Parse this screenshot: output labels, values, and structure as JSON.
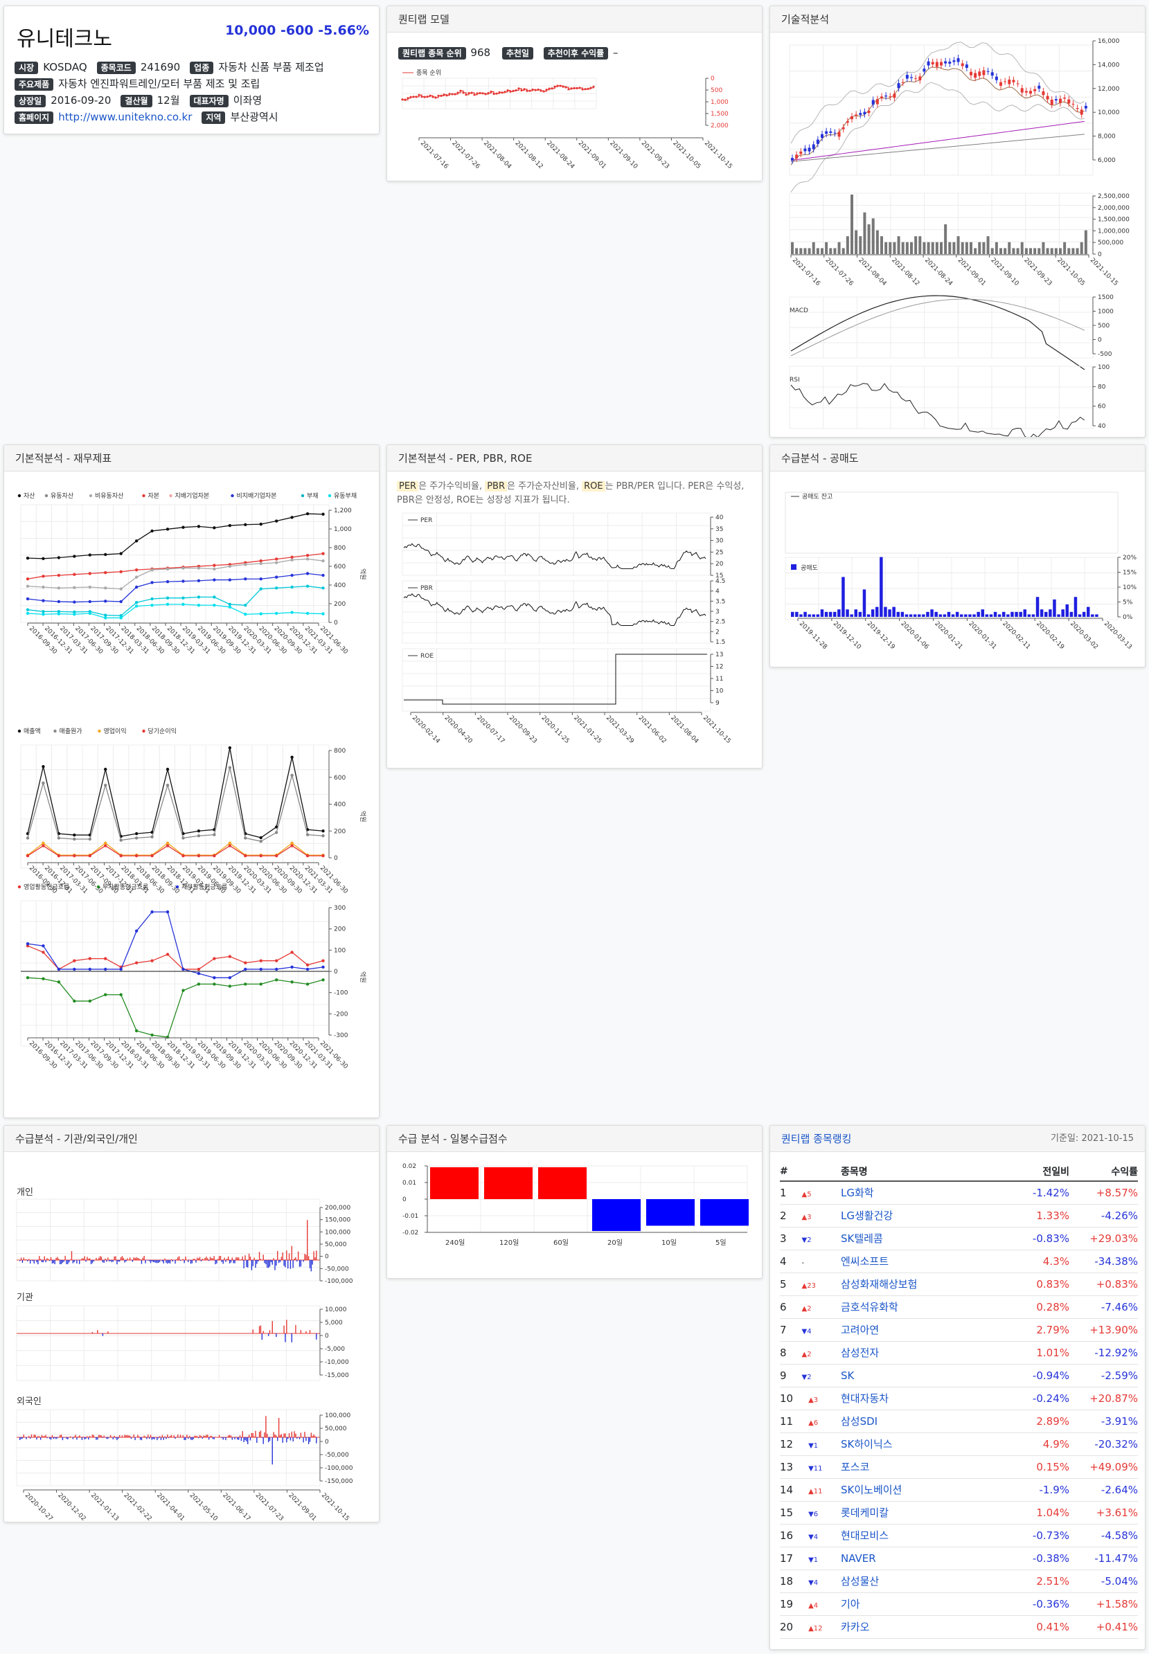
{
  "company": {
    "name": "유니테크노",
    "price": "10,000",
    "change": "-600",
    "change_pct": "-5.66%",
    "labels": {
      "market": "시장",
      "code": "종목코드",
      "industry": "업종",
      "products": "주요제품",
      "listed": "상장일",
      "fiscal": "결산월",
      "ceo": "대표자명",
      "homepage": "홈페이지",
      "region": "지역"
    },
    "market": "KOSDAQ",
    "code": "241690",
    "industry": "자동차 신품 부품 제조업",
    "products": "자동차 엔진파워트레인/모터 부품 제조 및 조립",
    "listed": "2016-09-20",
    "fiscal": "12월",
    "ceo": "이좌영",
    "homepage": "http://www.unitekno.co.kr",
    "region": "부산광역시"
  },
  "quant": {
    "title": "퀀티랩 모델",
    "rank_label": "퀀티랩 종목 순위",
    "rank": "968",
    "rec_label": "추천일",
    "rec_return_label": "추천이후 수익률",
    "rec_return": "–",
    "legend": "종목 순위",
    "yticks": [
      "0",
      "500",
      "1,000",
      "1,500",
      "2,000"
    ],
    "xticks": [
      "2021-07-16",
      "2021-07-26",
      "2021-08-04",
      "2021-08-12",
      "2021-08-24",
      "2021-09-01",
      "2021-09-10",
      "2021-09-23",
      "2021-10-05",
      "2021-10-15"
    ]
  },
  "tech": {
    "title": "기술적분석",
    "price_ticks": [
      "16,000",
      "14,000",
      "12,000",
      "10,000",
      "8,000",
      "6,000"
    ],
    "vol_ticks": [
      "2,500,000",
      "2,000,000",
      "1,500,000",
      "1,000,000",
      "500,000",
      "0"
    ],
    "macd_label": "MACD",
    "macd_ticks": [
      "1500",
      "1000",
      "500",
      "0",
      "-500"
    ],
    "rsi_label": "RSI",
    "rsi_ticks": [
      "100",
      "80",
      "60",
      "40"
    ],
    "xticks": [
      "2021-07-16",
      "2021-07-26",
      "2021-08-04",
      "2021-08-12",
      "2021-08-24",
      "2021-09-01",
      "2021-09-10",
      "2021-09-23",
      "2021-10-05",
      "2021-10-15"
    ]
  },
  "fin": {
    "title": "기본적분석 - 재무제표",
    "legend1": [
      "자산",
      "유동자산",
      "비유동자산",
      "자본",
      "지배기업자본",
      "비지배기업자본",
      "부채",
      "유동부채"
    ],
    "legend2": [
      "매출액",
      "매출원가",
      "영업이익",
      "당기순이익"
    ],
    "legend3": [
      "영업활동현금흐름",
      "투자활동현금흐름",
      "재무활동현금흐름"
    ],
    "unit": "억원",
    "ticks1": [
      "1,200",
      "1,000",
      "800",
      "600",
      "400",
      "200",
      "0"
    ],
    "ticks2": [
      "800",
      "600",
      "400",
      "200",
      "0"
    ],
    "ticks3": [
      "300",
      "200",
      "100",
      "0",
      "-100",
      "-200",
      "-300"
    ],
    "xticks": [
      "2016-09-30",
      "2016-12-31",
      "2017-03-31",
      "2017-06-30",
      "2017-09-30",
      "2017-12-31",
      "2018-03-31",
      "2018-06-30",
      "2018-09-30",
      "2018-12-31",
      "2019-03-31",
      "2019-06-30",
      "2019-09-30",
      "2019-12-31",
      "2020-03-31",
      "2020-06-30",
      "2020-09-30",
      "2020-12-31",
      "2021-03-31",
      "2021-06-30"
    ]
  },
  "per": {
    "title": "기본적분석 - PER, PBR, ROE",
    "desc": {
      "per": "PER",
      "t1": "은 주가수익비율, ",
      "pbr": "PBR",
      "t2": "은 주가순자산비율, ",
      "roe": "ROE",
      "t3": "는 PBR/PER 입니다. PER은 수익성, PBR은 안정성, ROE는 성장성 지표가 됩니다."
    },
    "per_label": "PER",
    "pbr_label": "PBR",
    "roe_label": "ROE",
    "per_ticks": [
      "40",
      "35",
      "30",
      "25",
      "20",
      "15"
    ],
    "pbr_ticks": [
      "4.5",
      "4",
      "3.5",
      "3",
      "2.5",
      "2",
      "1.5"
    ],
    "roe_ticks": [
      "13",
      "12",
      "11",
      "10",
      "9"
    ],
    "xticks": [
      "2020-02-14",
      "2020-04-20",
      "2020-07-17",
      "2020-09-23",
      "2020-11-25",
      "2021-01-25",
      "2021-03-29",
      "2021-06-02",
      "2021-08-04",
      "2021-10-15"
    ]
  },
  "short": {
    "title": "수급분석 - 공매도",
    "balance_label": "공매도 잔고",
    "vol_label": "공매도",
    "ticks": [
      "20%",
      "15%",
      "10%",
      "5%",
      "0%"
    ],
    "xticks": [
      "2019-11-28",
      "2019-12-10",
      "2019-12-19",
      "2020-01-06",
      "2020-01-21",
      "2020-01-31",
      "2020-02-11",
      "2020-02-19",
      "2020-03-02",
      "2020-03-13"
    ]
  },
  "flow": {
    "title": "수급분석 - 기관/외국인/개인",
    "individual": "개인",
    "institution": "기관",
    "foreign": "외국인",
    "ind_ticks": [
      "200,000",
      "150,000",
      "100,000",
      "50,000",
      "0",
      "-50,000",
      "-100,000"
    ],
    "inst_ticks": [
      "10,000",
      "5,000",
      "0",
      "-5,000",
      "-10,000",
      "-15,000"
    ],
    "for_ticks": [
      "100,000",
      "50,000",
      "0",
      "-50,000",
      "-100,000",
      "-150,000"
    ],
    "xticks": [
      "2020-10-27",
      "2020-12-02",
      "2021-01-13",
      "2021-02-22",
      "2021-04-01",
      "2021-05-10",
      "2021-06-17",
      "2021-07-23",
      "2021-09-01",
      "2021-10-15"
    ]
  },
  "score": {
    "title": "수급 분석 - 일봉수급점수",
    "ticks": [
      "0.02",
      "0.01",
      "0",
      "-0.01",
      "-0.02"
    ],
    "chart_data": {
      "type": "bar",
      "categories": [
        "240일",
        "120일",
        "60일",
        "20일",
        "10일",
        "5일"
      ],
      "values": [
        0.024,
        0.024,
        0.024,
        -0.024,
        -0.02,
        -0.02
      ],
      "ylim": [
        -0.025,
        0.025
      ]
    }
  },
  "rank": {
    "title": "퀀티랩 종목랭킹",
    "date": "기준일: 2021-10-15",
    "headers": [
      "#",
      "종목명",
      "전일비",
      "수익률"
    ],
    "rows": [
      {
        "n": "1",
        "mv": "▲5",
        "d": "up",
        "name": "LG화학",
        "c": "-1.42%",
        "cd": "dn",
        "r": "+8.57%",
        "rd": "up"
      },
      {
        "n": "2",
        "mv": "▲3",
        "d": "up",
        "name": "LG생활건강",
        "c": "1.33%",
        "cd": "up",
        "r": "-4.26%",
        "rd": "dn"
      },
      {
        "n": "3",
        "mv": "▼2",
        "d": "dn",
        "name": "SK텔레콤",
        "c": "-0.83%",
        "cd": "dn",
        "r": "+29.03%",
        "rd": "up"
      },
      {
        "n": "4",
        "mv": "-",
        "d": "",
        "name": "엔씨소프트",
        "c": "4.3%",
        "cd": "up",
        "r": "-34.38%",
        "rd": "dn"
      },
      {
        "n": "5",
        "mv": "▲23",
        "d": "up",
        "name": "삼성화재해상보험",
        "c": "0.83%",
        "cd": "up",
        "r": "+0.83%",
        "rd": "up"
      },
      {
        "n": "6",
        "mv": "▲2",
        "d": "up",
        "name": "금호석유화학",
        "c": "0.28%",
        "cd": "up",
        "r": "-7.46%",
        "rd": "dn"
      },
      {
        "n": "7",
        "mv": "▼4",
        "d": "dn",
        "name": "고려아연",
        "c": "2.79%",
        "cd": "up",
        "r": "+13.90%",
        "rd": "up"
      },
      {
        "n": "8",
        "mv": "▲2",
        "d": "up",
        "name": "삼성전자",
        "c": "1.01%",
        "cd": "up",
        "r": "-12.92%",
        "rd": "dn"
      },
      {
        "n": "9",
        "mv": "▼2",
        "d": "dn",
        "name": "SK",
        "c": "-0.94%",
        "cd": "dn",
        "r": "-2.59%",
        "rd": "dn"
      },
      {
        "n": "10",
        "mv": "▲3",
        "d": "up",
        "name": "현대자동차",
        "c": "-0.24%",
        "cd": "dn",
        "r": "+20.87%",
        "rd": "up"
      },
      {
        "n": "11",
        "mv": "▲6",
        "d": "up",
        "name": "삼성SDI",
        "c": "2.89%",
        "cd": "up",
        "r": "-3.91%",
        "rd": "dn"
      },
      {
        "n": "12",
        "mv": "▼1",
        "d": "dn",
        "name": "SK하이닉스",
        "c": "4.9%",
        "cd": "up",
        "r": "-20.32%",
        "rd": "dn"
      },
      {
        "n": "13",
        "mv": "▼11",
        "d": "dn",
        "name": "포스코",
        "c": "0.15%",
        "cd": "up",
        "r": "+49.09%",
        "rd": "up"
      },
      {
        "n": "14",
        "mv": "▲11",
        "d": "up",
        "name": "SK이노베이션",
        "c": "-1.9%",
        "cd": "dn",
        "r": "-2.64%",
        "rd": "dn"
      },
      {
        "n": "15",
        "mv": "▼6",
        "d": "dn",
        "name": "롯데케미칼",
        "c": "1.04%",
        "cd": "up",
        "r": "+3.61%",
        "rd": "up"
      },
      {
        "n": "16",
        "mv": "▼4",
        "d": "dn",
        "name": "현대모비스",
        "c": "-0.73%",
        "cd": "dn",
        "r": "-4.58%",
        "rd": "dn"
      },
      {
        "n": "17",
        "mv": "▼1",
        "d": "dn",
        "name": "NAVER",
        "c": "-0.38%",
        "cd": "dn",
        "r": "-11.47%",
        "rd": "dn"
      },
      {
        "n": "18",
        "mv": "▼4",
        "d": "dn",
        "name": "삼성물산",
        "c": "2.51%",
        "cd": "up",
        "r": "-5.04%",
        "rd": "dn"
      },
      {
        "n": "19",
        "mv": "▲4",
        "d": "up",
        "name": "기아",
        "c": "-0.36%",
        "cd": "dn",
        "r": "+1.58%",
        "rd": "up"
      },
      {
        "n": "20",
        "mv": "▲12",
        "d": "up",
        "name": "카카오",
        "c": "0.41%",
        "cd": "up",
        "r": "+0.41%",
        "rd": "up"
      }
    ]
  },
  "colors": {
    "up": "#e53935",
    "down": "#2533d8",
    "dark": "#343a40"
  }
}
